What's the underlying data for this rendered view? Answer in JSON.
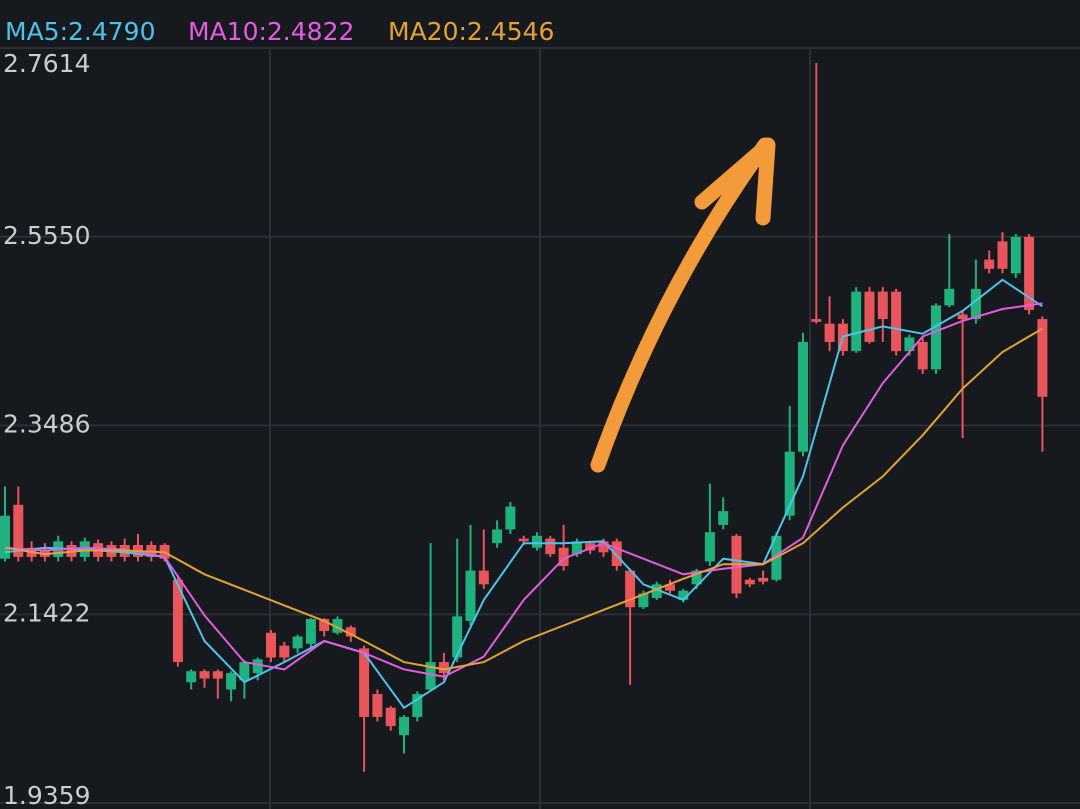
{
  "chart_data": {
    "type": "candlestick",
    "ylim": [
      1.9359,
      2.7614
    ],
    "yticks": [
      2.7614,
      {
        "value": 2.555,
        "label": "2.5550"
      },
      2.3486,
      2.1422,
      1.9359
    ],
    "grid": true,
    "up_color": "#1fb27e",
    "down_color": "#e8555b",
    "open": [
      2.203,
      2.262,
      2.215,
      2.212,
      2.205,
      2.218,
      2.205,
      2.22,
      2.218,
      2.218,
      2.218,
      2.218,
      2.218,
      2.18,
      2.068,
      2.08,
      2.08,
      2.06,
      2.07,
      2.078,
      2.122,
      2.108,
      2.105,
      2.11,
      2.137,
      2.122,
      2.128,
      2.105,
      2.055,
      2.04,
      2.01,
      2.03,
      2.06,
      2.09,
      2.095,
      2.135,
      2.19,
      2.22,
      2.235,
      2.225,
      2.215,
      2.225,
      2.215,
      2.208,
      2.22,
      2.222,
      2.222,
      2.19,
      2.15,
      2.16,
      2.175,
      2.158,
      2.175,
      2.2,
      2.24,
      2.228,
      2.18,
      2.182,
      2.18,
      2.25,
      2.32,
      2.465,
      2.46,
      2.46,
      2.43,
      2.495,
      2.495,
      2.495,
      2.43,
      2.44,
      2.41,
      2.48,
      2.47,
      2.465,
      2.53,
      2.55,
      2.515,
      2.555,
      2.465
    ],
    "high": [
      2.282,
      2.282,
      2.222,
      2.22,
      2.228,
      2.222,
      2.226,
      2.224,
      2.222,
      2.225,
      2.23,
      2.222,
      2.22,
      2.185,
      2.082,
      2.082,
      2.082,
      2.08,
      2.092,
      2.095,
      2.125,
      2.112,
      2.12,
      2.138,
      2.138,
      2.14,
      2.13,
      2.108,
      2.06,
      2.042,
      2.032,
      2.058,
      2.22,
      2.1,
      2.225,
      2.24,
      2.235,
      2.245,
      2.265,
      2.228,
      2.232,
      2.228,
      2.24,
      2.225,
      2.222,
      2.225,
      2.225,
      2.192,
      2.168,
      2.178,
      2.18,
      2.17,
      2.192,
      2.285,
      2.27,
      2.23,
      2.182,
      2.19,
      2.232,
      2.37,
      2.45,
      2.745,
      2.49,
      2.465,
      2.5,
      2.5,
      2.5,
      2.498,
      2.448,
      2.445,
      2.482,
      2.558,
      2.475,
      2.53,
      2.54,
      2.56,
      2.558,
      2.558,
      2.468
    ],
    "low": [
      2.2,
      2.2,
      2.2,
      2.2,
      2.2,
      2.2,
      2.2,
      2.2,
      2.2,
      2.2,
      2.2,
      2.2,
      2.2,
      2.085,
      2.06,
      2.062,
      2.05,
      2.047,
      2.05,
      2.07,
      2.09,
      2.09,
      2.1,
      2.105,
      2.118,
      2.12,
      2.112,
      1.97,
      2.025,
      2.015,
      1.99,
      2.025,
      2.058,
      2.07,
      2.09,
      2.13,
      2.17,
      2.215,
      2.23,
      2.218,
      2.212,
      2.205,
      2.19,
      2.205,
      2.208,
      2.205,
      2.19,
      2.065,
      2.148,
      2.158,
      2.165,
      2.155,
      2.17,
      2.195,
      2.235,
      2.16,
      2.172,
      2.175,
      2.178,
      2.245,
      2.315,
      2.46,
      2.43,
      2.425,
      2.428,
      2.438,
      2.44,
      2.425,
      2.425,
      2.405,
      2.405,
      2.478,
      2.335,
      2.46,
      2.515,
      2.515,
      2.51,
      2.47,
      2.32
    ],
    "close": [
      2.25,
      2.205,
      2.205,
      2.205,
      2.222,
      2.205,
      2.222,
      2.205,
      2.205,
      2.205,
      2.205,
      2.205,
      2.203,
      2.09,
      2.08,
      2.072,
      2.072,
      2.078,
      2.09,
      2.093,
      2.095,
      2.095,
      2.118,
      2.137,
      2.124,
      2.137,
      2.118,
      2.03,
      2.03,
      2.02,
      2.03,
      2.055,
      2.09,
      2.078,
      2.14,
      2.19,
      2.175,
      2.235,
      2.26,
      2.222,
      2.228,
      2.208,
      2.195,
      2.222,
      2.212,
      2.21,
      2.195,
      2.15,
      2.165,
      2.175,
      2.168,
      2.168,
      2.19,
      2.232,
      2.255,
      2.165,
      2.175,
      2.178,
      2.228,
      2.32,
      2.44,
      2.462,
      2.44,
      2.43,
      2.495,
      2.44,
      2.465,
      2.43,
      2.445,
      2.41,
      2.48,
      2.498,
      2.465,
      2.498,
      2.52,
      2.52,
      2.555,
      2.475,
      2.38
    ],
    "series": [
      {
        "name": "MA5:2.4790",
        "color": "#4cc3ea",
        "x": [
          0,
          3,
          6,
          9,
          12,
          15,
          18,
          21,
          24,
          27,
          30,
          33,
          36,
          39,
          42,
          45,
          48,
          51,
          54,
          57,
          60,
          63,
          66,
          69,
          72,
          75,
          78
        ],
        "values": [
          2.21,
          2.215,
          2.213,
          2.21,
          2.205,
          2.113,
          2.068,
          2.09,
          2.113,
          2.1,
          2.04,
          2.068,
          2.158,
          2.22,
          2.22,
          2.222,
          2.175,
          2.158,
          2.203,
          2.197,
          2.293,
          2.446,
          2.457,
          2.449,
          2.474,
          2.508,
          2.479
        ]
      },
      {
        "name": "MA10:2.4822",
        "color": "#e35be0",
        "x": [
          0,
          3,
          6,
          9,
          12,
          15,
          18,
          21,
          24,
          27,
          30,
          33,
          36,
          39,
          42,
          45,
          48,
          51,
          54,
          57,
          60,
          63,
          66,
          69,
          72,
          75,
          78
        ],
        "values": [
          2.215,
          2.212,
          2.215,
          2.213,
          2.205,
          2.141,
          2.09,
          2.082,
          2.113,
          2.1,
          2.082,
          2.074,
          2.096,
          2.158,
          2.203,
          2.22,
          2.203,
          2.186,
          2.192,
          2.197,
          2.226,
          2.327,
          2.395,
          2.446,
          2.463,
          2.476,
          2.4822
        ]
      },
      {
        "name": "MA20:2.4546",
        "color": "#e3a136",
        "x": [
          0,
          3,
          6,
          9,
          12,
          15,
          18,
          21,
          24,
          27,
          30,
          33,
          36,
          39,
          42,
          45,
          48,
          51,
          54,
          57,
          60,
          63,
          66,
          69,
          72,
          75,
          78
        ],
        "values": [
          2.215,
          2.208,
          2.212,
          2.212,
          2.21,
          2.186,
          2.169,
          2.152,
          2.135,
          2.113,
          2.09,
          2.082,
          2.09,
          2.113,
          2.13,
          2.147,
          2.164,
          2.181,
          2.197,
          2.197,
          2.22,
          2.259,
          2.293,
          2.338,
          2.389,
          2.429,
          2.4546
        ]
      }
    ]
  }
}
